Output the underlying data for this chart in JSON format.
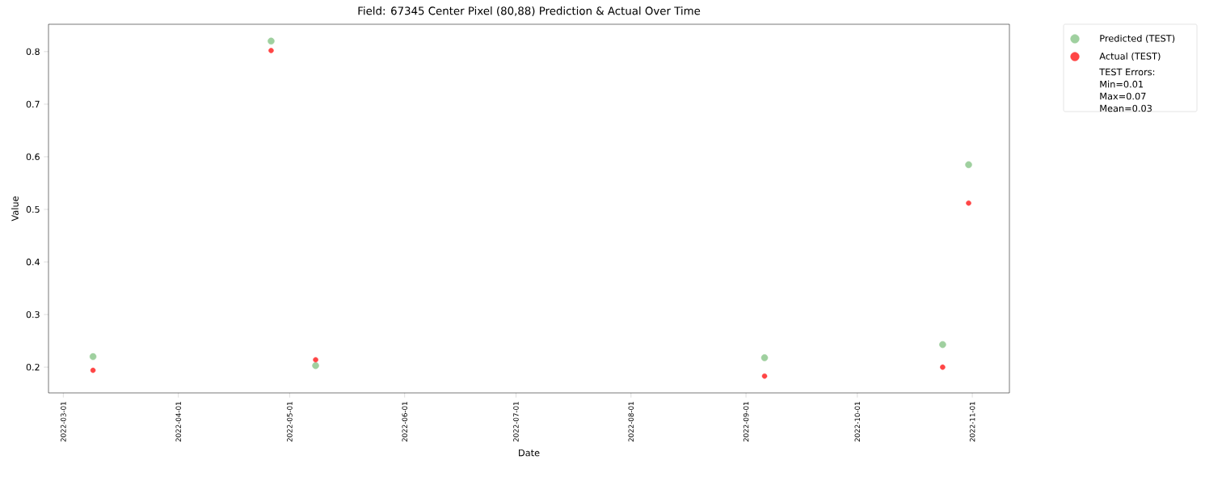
{
  "chart_data": {
    "type": "scatter",
    "title": "Field: 67345 Center Pixel (80,88) Prediction & Actual Over Time",
    "xlabel": "Date",
    "ylabel": "Value",
    "x": [
      "2022-03-09",
      "2022-04-26",
      "2022-05-08",
      "2022-09-06",
      "2022-10-24",
      "2022-10-31"
    ],
    "series": [
      {
        "name": "Predicted (TEST)",
        "color": "#9fd09f",
        "values": [
          0.22,
          0.82,
          0.203,
          0.218,
          0.243,
          0.585
        ]
      },
      {
        "name": "Actual (TEST)",
        "color": "#ff4545",
        "values": [
          0.194,
          0.802,
          0.214,
          0.183,
          0.2,
          0.512
        ]
      }
    ],
    "annotations": [
      "TEST Errors:",
      "Min=0.01",
      "Max=0.07",
      "Mean=0.03"
    ],
    "xlim": [
      "2022-02-25",
      "2022-11-11"
    ],
    "ylim": [
      0.151,
      0.852
    ],
    "xticks": [
      "2022-03-01",
      "2022-04-01",
      "2022-05-01",
      "2022-06-01",
      "2022-07-01",
      "2022-08-01",
      "2022-09-01",
      "2022-10-01",
      "2022-11-01"
    ],
    "yticks": [
      0.2,
      0.3,
      0.4,
      0.5,
      0.6,
      0.7,
      0.8
    ],
    "marker": "circle",
    "legend": "top right"
  }
}
